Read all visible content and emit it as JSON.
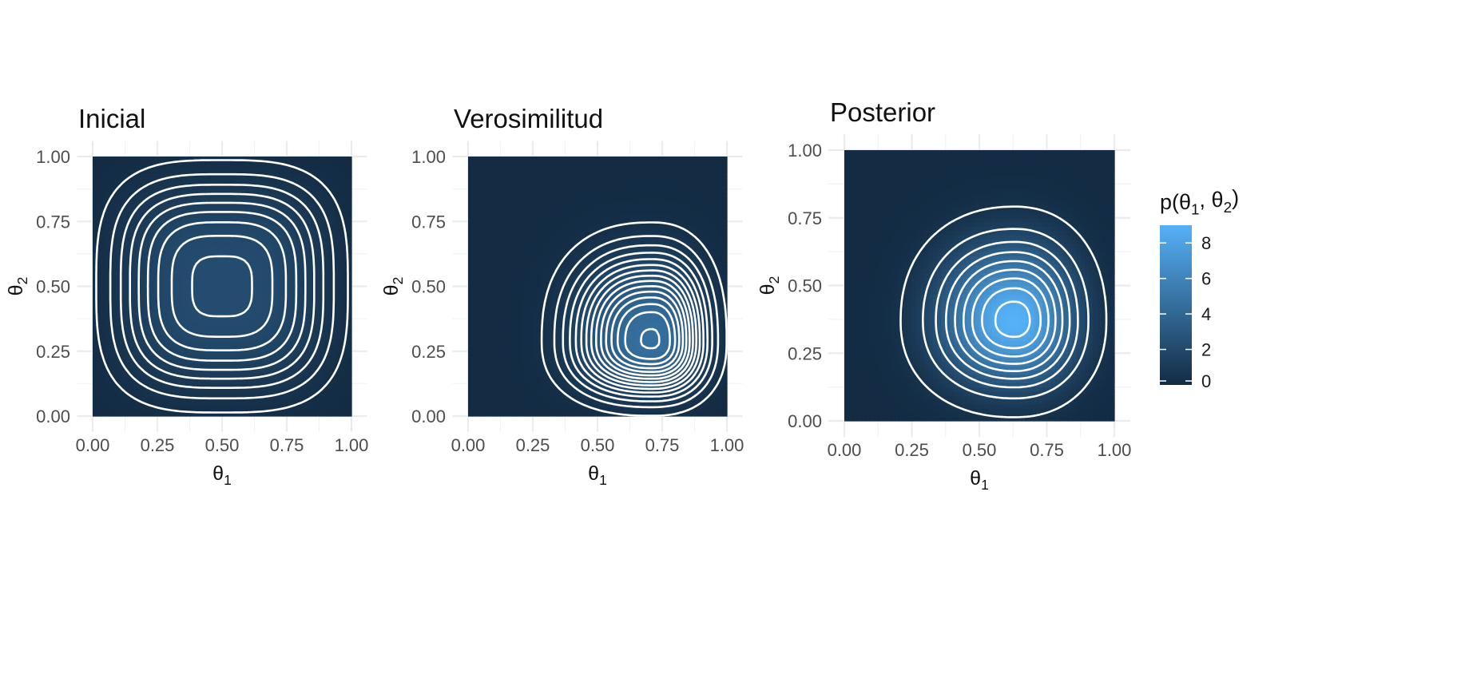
{
  "chart_data": [
    {
      "type": "heatmap",
      "title": "Inicial",
      "xlabel": "θ1",
      "ylabel": "θ2",
      "xlim": [
        0,
        1
      ],
      "ylim": [
        0,
        1
      ],
      "x_ticks": [
        "0.00",
        "0.25",
        "0.50",
        "0.75",
        "1.00"
      ],
      "y_ticks": [
        "0.00",
        "0.25",
        "0.50",
        "0.75",
        "1.00"
      ],
      "peak": {
        "x": 0.5,
        "y": 0.5,
        "value": 2.25
      },
      "contour_levels": [
        0.25,
        0.5,
        0.75,
        1.0,
        1.25,
        1.5,
        1.75,
        2.0,
        2.2
      ],
      "grid": true
    },
    {
      "type": "heatmap",
      "title": "Verosimilitud",
      "xlabel": "θ1",
      "ylabel": "θ2",
      "xlim": [
        0,
        1
      ],
      "ylim": [
        0,
        1
      ],
      "x_ticks": [
        "0.00",
        "0.25",
        "0.50",
        "0.75",
        "1.00"
      ],
      "y_ticks": [
        "0.00",
        "0.25",
        "0.50",
        "0.75",
        "1.00"
      ],
      "peak": {
        "x": 0.71,
        "y": 0.29,
        "value": 4.6
      },
      "contour_levels": [
        0.3,
        0.6,
        0.9,
        1.2,
        1.5,
        1.8,
        2.1,
        2.4,
        2.7,
        3.0,
        3.3,
        3.6,
        3.9,
        4.2,
        4.55
      ],
      "grid": true
    },
    {
      "type": "heatmap",
      "title": "Posterior",
      "xlabel": "θ1",
      "ylabel": "θ2",
      "xlim": [
        0,
        1
      ],
      "ylim": [
        0,
        1
      ],
      "x_ticks": [
        "0.00",
        "0.25",
        "0.50",
        "0.75",
        "1.00"
      ],
      "y_ticks": [
        "0.00",
        "0.25",
        "0.50",
        "0.75",
        "1.00"
      ],
      "peak": {
        "x": 0.63,
        "y": 0.37,
        "value": 9.0
      },
      "contour_levels": [
        0.5,
        1.5,
        2.5,
        3.5,
        4.5,
        5.5,
        6.5,
        7.5,
        8.5
      ],
      "grid": true
    }
  ],
  "legend": {
    "title": "p(θ1, θ2)",
    "position": "right",
    "range": [
      0,
      9
    ],
    "labels": [
      "0",
      "2",
      "4",
      "6",
      "8"
    ],
    "values": [
      0,
      2,
      4,
      6,
      8
    ],
    "low_color": "#132b43",
    "high_color": "#56b1f7"
  }
}
